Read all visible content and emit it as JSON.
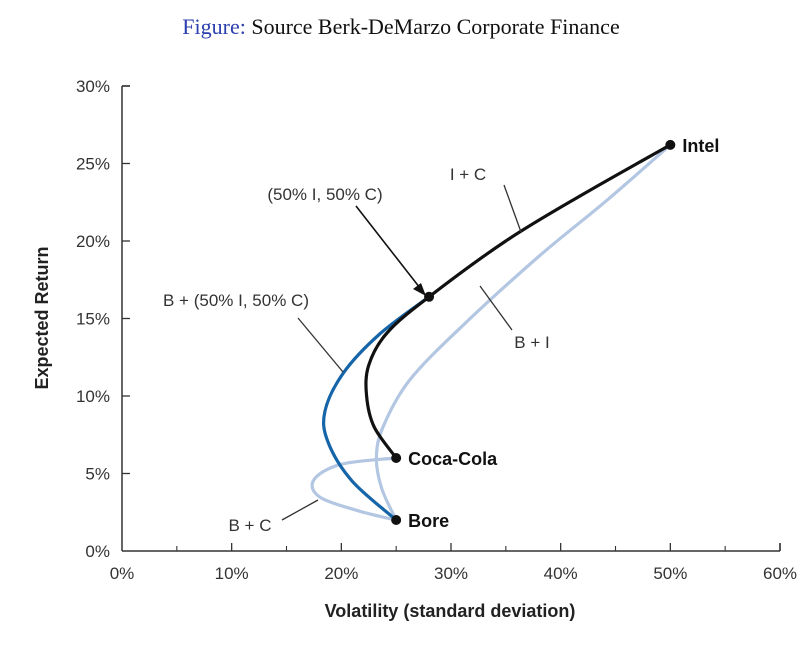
{
  "caption": {
    "prefix": "Figure:",
    "text": "Source Berk-DeMarzo Corporate Finance"
  },
  "chart_data": {
    "type": "line",
    "xlabel": "Volatility (standard deviation)",
    "ylabel": "Expected Return",
    "xlim": [
      0,
      60
    ],
    "ylim": [
      0,
      30
    ],
    "x_ticks": [
      "0%",
      "10%",
      "20%",
      "30%",
      "40%",
      "50%",
      "60%"
    ],
    "y_ticks": [
      "0%",
      "5%",
      "10%",
      "15%",
      "20%",
      "25%",
      "30%"
    ],
    "grid": false,
    "colors": {
      "ic": "#111111",
      "bi": "#b3c6e2",
      "bc": "#b3c6e2",
      "b_ic": "#1565a8",
      "points": "#111111"
    },
    "series": [
      {
        "id": "ic",
        "x": [
          25,
          23,
          22.3,
          22.5,
          24.2,
          28,
          35,
          42,
          50
        ],
        "y": [
          6,
          8,
          10,
          12,
          14.1,
          16.4,
          20,
          23,
          26.2
        ]
      },
      {
        "id": "bi",
        "x": [
          25,
          23.7,
          23.2,
          23.8,
          26.2,
          31,
          38,
          44,
          50
        ],
        "y": [
          2,
          4,
          6,
          8,
          11,
          14.5,
          19,
          22.5,
          26.2
        ]
      },
      {
        "id": "bc",
        "x": [
          25,
          21.5,
          18,
          17.5,
          20,
          25
        ],
        "y": [
          2,
          2.6,
          3.5,
          4.6,
          5.6,
          6
        ]
      },
      {
        "id": "b_ic",
        "x": [
          25,
          21,
          18.8,
          18.5,
          20.2,
          23.5,
          28
        ],
        "y": [
          2,
          4.5,
          7,
          9,
          11.5,
          14,
          16.4
        ]
      }
    ],
    "points": [
      {
        "label": "Intel",
        "x": 50,
        "y": 26.2
      },
      {
        "label": "Coca-Cola",
        "x": 25,
        "y": 6
      },
      {
        "label": "Bore",
        "x": 25,
        "y": 2
      },
      {
        "label": "",
        "x": 28,
        "y": 16.4
      }
    ],
    "annotations": {
      "ic": "I + C",
      "bi": "B + I",
      "bc": "B + C",
      "b_ic": "B + (50% I, 50% C)",
      "mix": "(50% I, 50% C)"
    }
  }
}
